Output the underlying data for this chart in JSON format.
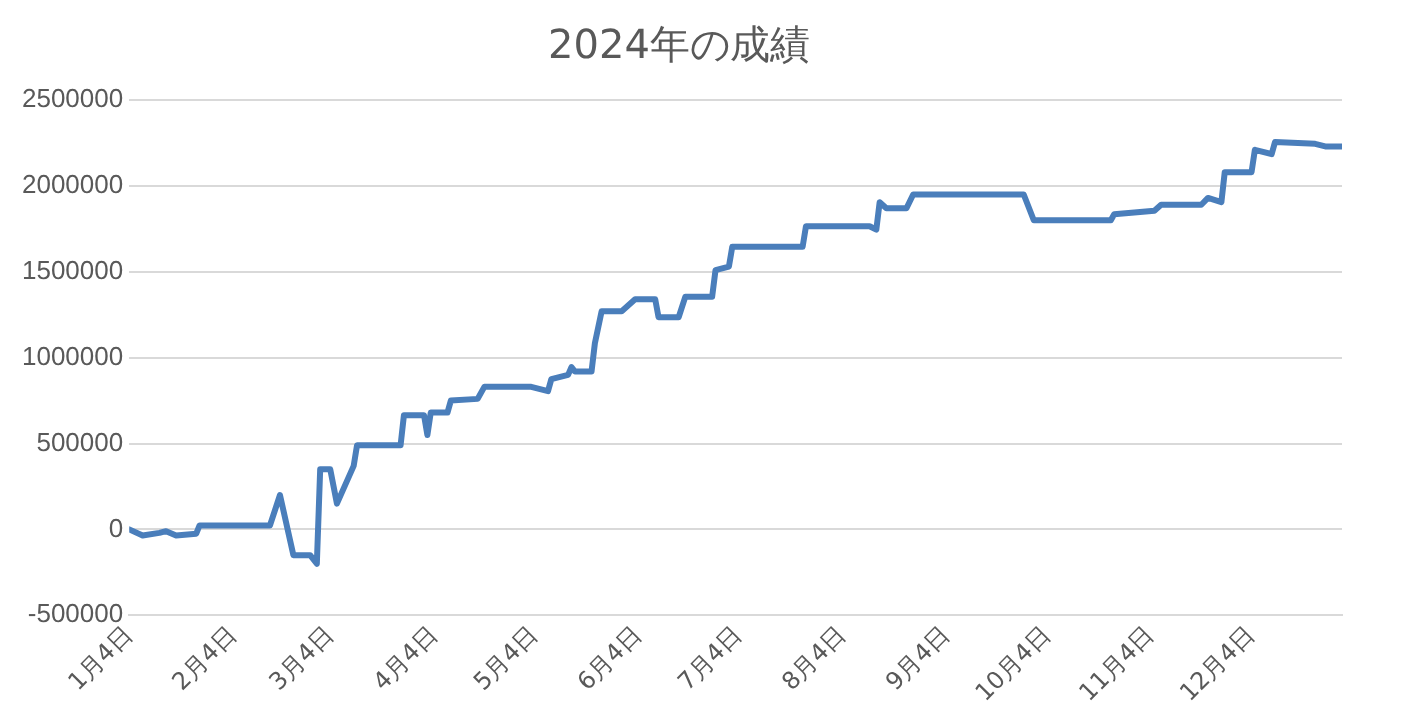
{
  "chart_data": {
    "type": "line",
    "title": "2024年の成績",
    "color": "#4a7ebb",
    "line_style": "solid",
    "marker": "none",
    "grid": "y",
    "legend": false,
    "x": [
      "2024-01-04",
      "2024-01-08",
      "2024-01-13",
      "2024-01-15",
      "2024-01-18",
      "2024-01-24",
      "2024-01-25",
      "2024-02-15",
      "2024-02-18",
      "2024-02-22",
      "2024-02-27",
      "2024-02-29",
      "2024-03-01",
      "2024-03-04",
      "2024-03-06",
      "2024-03-11",
      "2024-03-12",
      "2024-03-25",
      "2024-03-26",
      "2024-04-01",
      "2024-04-02",
      "2024-04-03",
      "2024-04-08",
      "2024-04-09",
      "2024-04-17",
      "2024-04-19",
      "2024-05-03",
      "2024-05-08",
      "2024-05-09",
      "2024-05-14",
      "2024-05-15",
      "2024-05-16",
      "2024-05-21",
      "2024-05-22",
      "2024-05-24",
      "2024-05-30",
      "2024-06-03",
      "2024-06-09",
      "2024-06-10",
      "2024-06-16",
      "2024-06-18",
      "2024-06-26",
      "2024-06-27",
      "2024-07-01",
      "2024-07-02",
      "2024-07-23",
      "2024-07-24",
      "2024-08-12",
      "2024-08-14",
      "2024-08-15",
      "2024-08-17",
      "2024-08-23",
      "2024-08-25",
      "2024-09-27",
      "2024-09-30",
      "2024-10-23",
      "2024-10-24",
      "2024-10-30",
      "2024-11-05",
      "2024-11-07",
      "2024-11-19",
      "2024-11-21",
      "2024-11-25",
      "2024-11-26",
      "2024-12-04",
      "2024-12-05",
      "2024-12-10",
      "2024-12-11",
      "2024-12-23",
      "2024-12-26",
      "2024-12-31"
    ],
    "values": [
      0,
      -35000,
      -20000,
      -10000,
      -35000,
      -25000,
      23000,
      23000,
      200000,
      -150000,
      -150000,
      -200000,
      350000,
      350000,
      150000,
      370000,
      490000,
      490000,
      665000,
      665000,
      550000,
      680000,
      680000,
      750000,
      760000,
      830000,
      830000,
      805000,
      875000,
      900000,
      945000,
      920000,
      920000,
      1085000,
      1270000,
      1270000,
      1340000,
      1340000,
      1235000,
      1235000,
      1355000,
      1355000,
      1510000,
      1530000,
      1645000,
      1645000,
      1765000,
      1765000,
      1745000,
      1905000,
      1870000,
      1870000,
      1950000,
      1950000,
      1800000,
      1800000,
      1835000,
      1845000,
      1855000,
      1890000,
      1890000,
      1930000,
      1905000,
      2080000,
      2080000,
      2210000,
      2185000,
      2255000,
      2245000,
      2230000,
      2230000
    ],
    "xlim": [
      "2024-01-04",
      "2024-12-31"
    ],
    "xticks": [
      {
        "value": "2024-01-04",
        "label": "1月4日"
      },
      {
        "value": "2024-02-04",
        "label": "2月4日"
      },
      {
        "value": "2024-03-04",
        "label": "3月4日"
      },
      {
        "value": "2024-04-04",
        "label": "4月4日"
      },
      {
        "value": "2024-05-04",
        "label": "5月4日"
      },
      {
        "value": "2024-06-04",
        "label": "6月4日"
      },
      {
        "value": "2024-07-04",
        "label": "7月4日"
      },
      {
        "value": "2024-08-04",
        "label": "8月4日"
      },
      {
        "value": "2024-09-04",
        "label": "9月4日"
      },
      {
        "value": "2024-10-04",
        "label": "10月4日"
      },
      {
        "value": "2024-11-04",
        "label": "11月4日"
      },
      {
        "value": "2024-12-04",
        "label": "12月4日"
      }
    ],
    "ylim": [
      -500000,
      2500000
    ],
    "yticks": [
      -500000,
      0,
      500000,
      1000000,
      1500000,
      2000000,
      2500000
    ]
  }
}
